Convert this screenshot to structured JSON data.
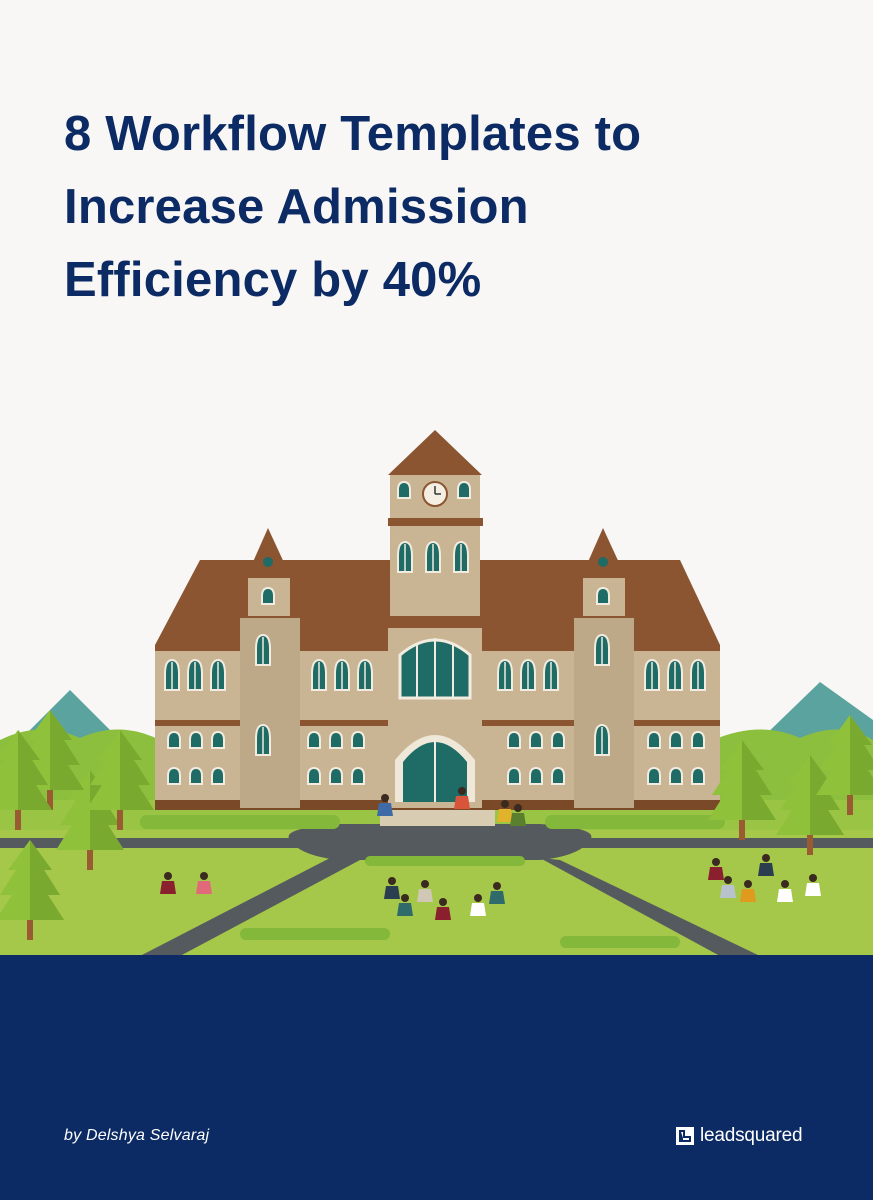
{
  "cover": {
    "title_lines": [
      "8 Workflow Templates to",
      "Increase Admission",
      "Efficiency by 40%"
    ],
    "author": "by Delshya Selvaraj",
    "brand": "leadsquared"
  },
  "colors": {
    "navy": "#0c2a63",
    "background": "#f8f7f6",
    "grass": "#a5c74a",
    "roof": "#8a5530",
    "wall": "#c9b594",
    "window": "#1f6b66"
  },
  "illustration": {
    "icons": [
      "school-building-icon",
      "clock-icon",
      "tree-icon",
      "mountain-icon",
      "student-group-icon"
    ]
  }
}
